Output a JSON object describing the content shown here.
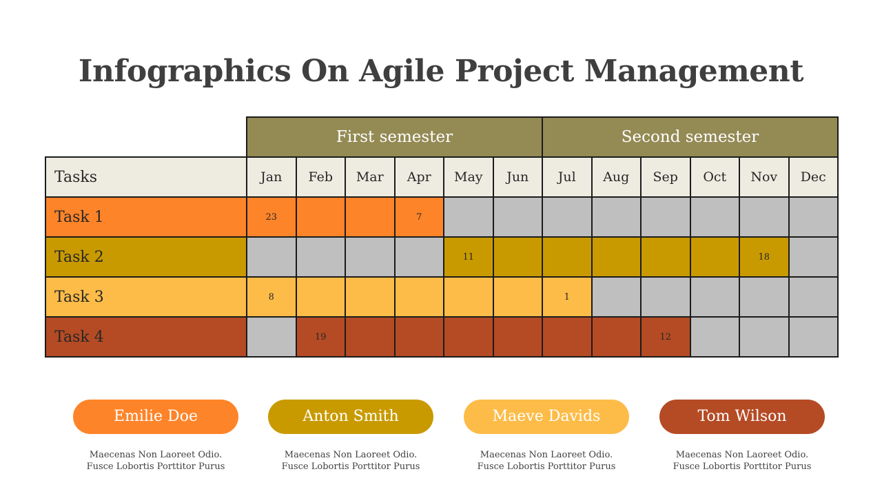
{
  "title": "Infographics On Agile Project Management",
  "semesters": [
    "First semester",
    "Second semester"
  ],
  "tasks_header": "Tasks",
  "months": [
    "Jan",
    "Feb",
    "Mar",
    "Apr",
    "May",
    "Jun",
    "Jul",
    "Aug",
    "Sep",
    "Oct",
    "Nov",
    "Dec"
  ],
  "colors": {
    "semester_bg": "#948a54",
    "header_bg": "#eeece1",
    "inactive": "#bfbfbf",
    "task1": "#fe8429",
    "task2": "#c99a00",
    "task3": "#fdbc48",
    "task4": "#b54b24"
  },
  "tasks": [
    {
      "label": "Task 1",
      "color": "#fe8429",
      "cells": [
        {
          "on": true,
          "text": "23"
        },
        {
          "on": true,
          "text": ""
        },
        {
          "on": true,
          "text": ""
        },
        {
          "on": true,
          "text": "7"
        },
        {
          "on": false,
          "text": ""
        },
        {
          "on": false,
          "text": ""
        },
        {
          "on": false,
          "text": ""
        },
        {
          "on": false,
          "text": ""
        },
        {
          "on": false,
          "text": ""
        },
        {
          "on": false,
          "text": ""
        },
        {
          "on": false,
          "text": ""
        },
        {
          "on": false,
          "text": ""
        }
      ]
    },
    {
      "label": "Task 2",
      "color": "#c99a00",
      "cells": [
        {
          "on": false,
          "text": ""
        },
        {
          "on": false,
          "text": ""
        },
        {
          "on": false,
          "text": ""
        },
        {
          "on": false,
          "text": ""
        },
        {
          "on": true,
          "text": "11"
        },
        {
          "on": true,
          "text": ""
        },
        {
          "on": true,
          "text": ""
        },
        {
          "on": true,
          "text": ""
        },
        {
          "on": true,
          "text": ""
        },
        {
          "on": true,
          "text": ""
        },
        {
          "on": true,
          "text": "18"
        },
        {
          "on": false,
          "text": ""
        }
      ]
    },
    {
      "label": "Task 3",
      "color": "#fdbc48",
      "cells": [
        {
          "on": true,
          "text": "8"
        },
        {
          "on": true,
          "text": ""
        },
        {
          "on": true,
          "text": ""
        },
        {
          "on": true,
          "text": ""
        },
        {
          "on": true,
          "text": ""
        },
        {
          "on": true,
          "text": ""
        },
        {
          "on": true,
          "text": "1"
        },
        {
          "on": false,
          "text": ""
        },
        {
          "on": false,
          "text": ""
        },
        {
          "on": false,
          "text": ""
        },
        {
          "on": false,
          "text": ""
        },
        {
          "on": false,
          "text": ""
        }
      ]
    },
    {
      "label": "Task 4",
      "color": "#b54b24",
      "cells": [
        {
          "on": false,
          "text": ""
        },
        {
          "on": true,
          "text": "19"
        },
        {
          "on": true,
          "text": ""
        },
        {
          "on": true,
          "text": ""
        },
        {
          "on": true,
          "text": ""
        },
        {
          "on": true,
          "text": ""
        },
        {
          "on": true,
          "text": ""
        },
        {
          "on": true,
          "text": ""
        },
        {
          "on": true,
          "text": "12"
        },
        {
          "on": false,
          "text": ""
        },
        {
          "on": false,
          "text": ""
        },
        {
          "on": false,
          "text": ""
        }
      ]
    }
  ],
  "people": [
    {
      "name": "Emilie Doe",
      "color": "#fe8429",
      "desc1": "Maecenas Non Laoreet Odio.",
      "desc2": "Fusce Lobortis Porttitor Purus"
    },
    {
      "name": "Anton Smith",
      "color": "#c99a00",
      "desc1": "Maecenas Non Laoreet Odio.",
      "desc2": "Fusce Lobortis Porttitor Purus"
    },
    {
      "name": "Maeve Davids",
      "color": "#fdbc48",
      "desc1": "Maecenas Non Laoreet Odio.",
      "desc2": "Fusce Lobortis Porttitor Purus"
    },
    {
      "name": "Tom Wilson",
      "color": "#b54b24",
      "desc1": "Maecenas Non Laoreet Odio.",
      "desc2": "Fusce Lobortis Porttitor Purus"
    }
  ]
}
